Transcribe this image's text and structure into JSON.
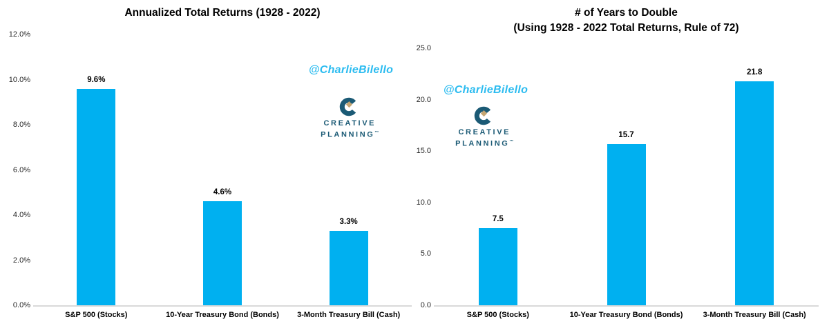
{
  "page": {
    "background": "#FFFFFF"
  },
  "watermark": {
    "handle": "@CharlieBilello",
    "color": "#2CBCF0"
  },
  "logo": {
    "line1": "CREATIVE",
    "line2": "PLANNING",
    "trademark": "™",
    "color": "#1B5A75",
    "diamond_color": "#C4A572"
  },
  "chart_data": [
    {
      "type": "bar",
      "title": "Annualized Total Returns (1928 - 2022)",
      "subtitle": "",
      "categories": [
        "S&P 500 (Stocks)",
        "10-Year Treasury Bond (Bonds)",
        "3-Month Treasury Bill (Cash)"
      ],
      "values": [
        9.6,
        4.6,
        3.3
      ],
      "value_labels": [
        "9.6%",
        "4.6%",
        "3.3%"
      ],
      "xlabel": "",
      "ylabel": "",
      "ylim": [
        0,
        12
      ],
      "ytick_step": 2,
      "ytick_labels": [
        "0.0%",
        "2.0%",
        "4.0%",
        "6.0%",
        "8.0%",
        "10.0%",
        "12.0%"
      ],
      "bar_color": "#00B0F0",
      "axis_line_color": "#D9D9D9",
      "grid": false,
      "legend": "none"
    },
    {
      "type": "bar",
      "title": "# of Years to Double",
      "subtitle": "(Using 1928 - 2022 Total Returns, Rule of 72)",
      "categories": [
        "S&P 500 (Stocks)",
        "10-Year Treasury Bond (Bonds)",
        "3-Month Treasury Bill (Cash)"
      ],
      "values": [
        7.5,
        15.7,
        21.8
      ],
      "value_labels": [
        "7.5",
        "15.7",
        "21.8"
      ],
      "xlabel": "",
      "ylabel": "",
      "ylim": [
        0,
        25
      ],
      "ytick_step": 5,
      "ytick_labels": [
        "0.0",
        "5.0",
        "10.0",
        "15.0",
        "20.0",
        "25.0"
      ],
      "bar_color": "#00B0F0",
      "axis_line_color": "#D9D9D9",
      "grid": false,
      "legend": "none"
    }
  ]
}
